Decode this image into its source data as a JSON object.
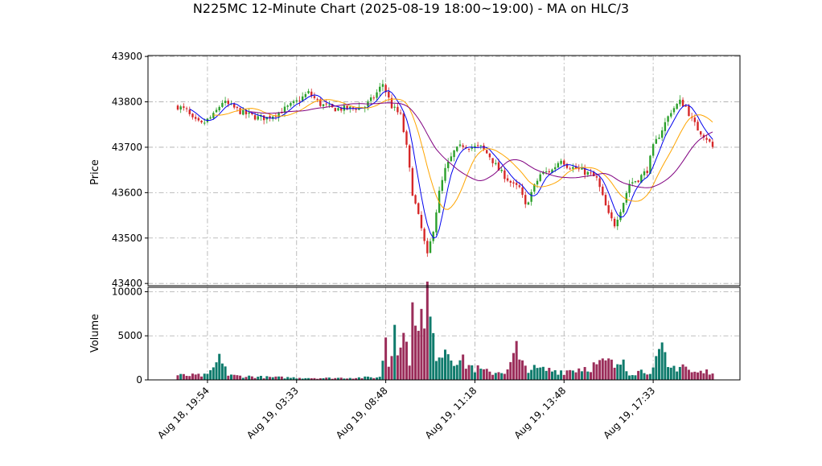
{
  "chart_data": {
    "type": "candlestick",
    "title": "N225MC 12-Minute Chart (2025-08-19 18:00~19:00) - MA on HLC/3",
    "price_panel": {
      "ylabel": "Price",
      "ylim": [
        43395,
        43902
      ],
      "yticks": [
        43400,
        43500,
        43600,
        43700,
        43800,
        43900
      ],
      "ytick_labels": [
        "43400",
        "43500",
        "43600",
        "43700",
        "43800",
        "43900"
      ]
    },
    "volume_panel": {
      "ylabel": "Volume",
      "ylim": [
        0,
        10500
      ],
      "yticks": [
        0,
        5000,
        10000
      ],
      "ytick_labels": [
        "0",
        "5000",
        "10000"
      ]
    },
    "x_tick_labels": [
      "Aug 18, 19:54",
      "Aug 19, 03:33",
      "Aug 19, 08:48",
      "Aug 19, 11:18",
      "Aug 19, 13:48",
      "Aug 19, 17:33"
    ],
    "x_tick_index": [
      10,
      40,
      70,
      100,
      130,
      160
    ],
    "bar_count": 181,
    "colors": {
      "up": "#2ca02c",
      "down": "#d62728",
      "vol_up": "#0f7b6c",
      "vol_down": "#9b2d5a",
      "ma_fast": "#0000ee",
      "ma_mid": "#ffa500",
      "ma_slow": "#800080"
    },
    "close_anchors": [
      [
        0,
        43790
      ],
      [
        3,
        43780
      ],
      [
        5,
        43760
      ],
      [
        8,
        43750
      ],
      [
        12,
        43770
      ],
      [
        15,
        43800
      ],
      [
        18,
        43790
      ],
      [
        22,
        43775
      ],
      [
        27,
        43765
      ],
      [
        30,
        43765
      ],
      [
        35,
        43780
      ],
      [
        40,
        43800
      ],
      [
        44,
        43820
      ],
      [
        48,
        43795
      ],
      [
        52,
        43785
      ],
      [
        58,
        43785
      ],
      [
        63,
        43790
      ],
      [
        66,
        43810
      ],
      [
        69,
        43840
      ],
      [
        72,
        43790
      ],
      [
        75,
        43770
      ],
      [
        77,
        43700
      ],
      [
        79,
        43600
      ],
      [
        82,
        43520
      ],
      [
        84,
        43460
      ],
      [
        86,
        43520
      ],
      [
        88,
        43600
      ],
      [
        90,
        43650
      ],
      [
        93,
        43690
      ],
      [
        96,
        43705
      ],
      [
        99,
        43700
      ],
      [
        102,
        43700
      ],
      [
        105,
        43680
      ],
      [
        108,
        43650
      ],
      [
        111,
        43630
      ],
      [
        113,
        43615
      ],
      [
        115,
        43610
      ],
      [
        117,
        43570
      ],
      [
        119,
        43600
      ],
      [
        122,
        43640
      ],
      [
        126,
        43650
      ],
      [
        129,
        43675
      ],
      [
        131,
        43660
      ],
      [
        135,
        43650
      ],
      [
        139,
        43640
      ],
      [
        141,
        43630
      ],
      [
        143,
        43590
      ],
      [
        145,
        43550
      ],
      [
        147,
        43530
      ],
      [
        150,
        43580
      ],
      [
        152,
        43620
      ],
      [
        155,
        43630
      ],
      [
        158,
        43650
      ],
      [
        160,
        43700
      ],
      [
        163,
        43740
      ],
      [
        166,
        43780
      ],
      [
        169,
        43800
      ],
      [
        171,
        43790
      ],
      [
        173,
        43760
      ],
      [
        175,
        43740
      ],
      [
        178,
        43720
      ],
      [
        180,
        43700
      ],
      [
        181,
        43720
      ]
    ],
    "volume_anchors": [
      [
        0,
        500
      ],
      [
        10,
        500
      ],
      [
        15,
        2600
      ],
      [
        17,
        500
      ],
      [
        30,
        300
      ],
      [
        50,
        200
      ],
      [
        60,
        250
      ],
      [
        68,
        300
      ],
      [
        70,
        5100
      ],
      [
        71,
        1800
      ],
      [
        72,
        3000
      ],
      [
        73,
        8600
      ],
      [
        74,
        5000
      ],
      [
        76,
        4800
      ],
      [
        78,
        2800
      ],
      [
        80,
        9800
      ],
      [
        81,
        8600
      ],
      [
        82,
        6700
      ],
      [
        83,
        5000
      ],
      [
        84,
        9600
      ],
      [
        86,
        3800
      ],
      [
        88,
        3300
      ],
      [
        90,
        3900
      ],
      [
        92,
        3000
      ],
      [
        95,
        2200
      ],
      [
        100,
        1300
      ],
      [
        105,
        800
      ],
      [
        110,
        1000
      ],
      [
        112,
        1600
      ],
      [
        114,
        3800
      ],
      [
        115,
        1800
      ],
      [
        120,
        1200
      ],
      [
        130,
        1000
      ],
      [
        140,
        1600
      ],
      [
        145,
        2000
      ],
      [
        148,
        1300
      ],
      [
        150,
        2600
      ],
      [
        152,
        800
      ],
      [
        160,
        1200
      ],
      [
        163,
        3300
      ],
      [
        165,
        1200
      ],
      [
        170,
        1800
      ],
      [
        173,
        800
      ],
      [
        178,
        900
      ],
      [
        181,
        1400
      ]
    ]
  }
}
